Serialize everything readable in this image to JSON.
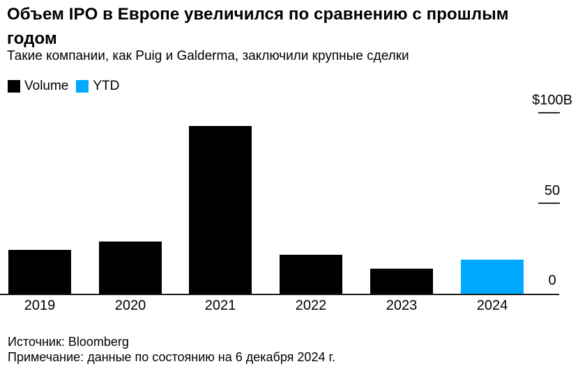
{
  "header": {
    "title": "Объем IPO в Европе увеличился по сравнению с прошлым годом",
    "subtitle": "Такие компании, как Puig и Galderma, заключили крупные сделки"
  },
  "legend": {
    "items": [
      {
        "label": "Volume",
        "color": "#000000"
      },
      {
        "label": "YTD",
        "color": "#00aaff"
      }
    ]
  },
  "chart_data": {
    "type": "bar",
    "title": "Объем IPO в Европе увеличился по сравнению с прошлым годом",
    "subtitle": "Такие компании, как Puig и Galderma, заключили крупные сделки",
    "categories": [
      "2019",
      "2020",
      "2021",
      "2022",
      "2023",
      "2024"
    ],
    "series": [
      {
        "name": "Volume",
        "color": "#000000",
        "values": [
          24.5,
          29,
          93,
          21.5,
          14,
          null
        ]
      },
      {
        "name": "YTD",
        "color": "#00aaff",
        "values": [
          null,
          null,
          null,
          null,
          null,
          19
        ]
      }
    ],
    "unit": "billions USD",
    "xlabel": "",
    "ylabel": "",
    "ylim": [
      0,
      100
    ],
    "yticks": [
      {
        "value": 100,
        "label": "$100B",
        "dash": true
      },
      {
        "value": 50,
        "label": "50",
        "dash": true
      },
      {
        "value": 0,
        "label": "0",
        "dash": false
      }
    ],
    "grid": false,
    "legend_position": "top-left"
  },
  "footer": {
    "source": "Источник: Bloomberg",
    "note": "Примечание: данные по состоянию на 6 декабря 2024 г."
  }
}
